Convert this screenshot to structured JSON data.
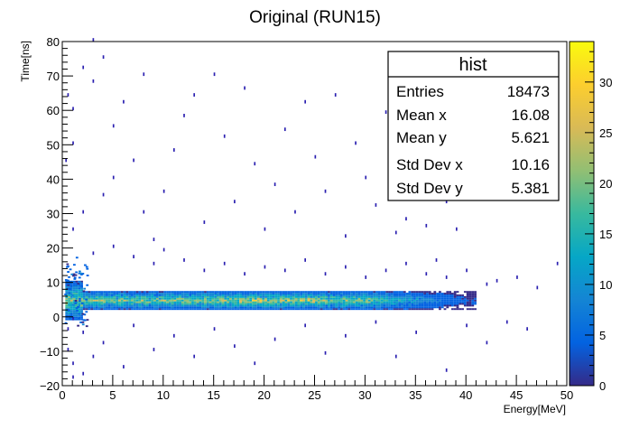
{
  "chart_data": {
    "type": "heatmap",
    "title": "Original (RUN15)",
    "xlabel": "Energy[MeV]",
    "ylabel": "Time[ns]",
    "xlim": [
      0,
      50
    ],
    "ylim": [
      -20,
      80
    ],
    "xticks": [
      "0",
      "5",
      "10",
      "15",
      "20",
      "25",
      "30",
      "35",
      "40",
      "45",
      "50"
    ],
    "yticks": [
      "−20",
      "−10",
      "0",
      "10",
      "20",
      "30",
      "40",
      "50",
      "60",
      "70",
      "80"
    ],
    "zlim": [
      0,
      34
    ],
    "zticks": [
      "0",
      "5",
      "10",
      "15",
      "20",
      "25",
      "30"
    ],
    "grid": false,
    "stats_box": {
      "title": "hist",
      "rows": [
        {
          "label": "Entries",
          "value": "18473"
        },
        {
          "label": "Mean x",
          "value": "16.08"
        },
        {
          "label": "Mean y",
          "value": "5.621"
        },
        {
          "label": "Std Dev x",
          "value": "10.16"
        },
        {
          "label": "Std Dev y",
          "value": "5.381"
        }
      ]
    },
    "band": {
      "x_range": [
        0.3,
        41
      ],
      "y_center": 4.5,
      "y_halfwidth": 2.5,
      "peak_counts": 22
    },
    "scatter_points": [
      [
        1,
        60
      ],
      [
        1,
        50
      ],
      [
        2,
        72
      ],
      [
        3,
        80
      ],
      [
        3,
        68
      ],
      [
        4,
        75
      ],
      [
        5,
        55
      ],
      [
        5,
        40
      ],
      [
        6,
        62
      ],
      [
        7,
        45
      ],
      [
        8,
        30
      ],
      [
        8,
        70
      ],
      [
        9,
        22
      ],
      [
        10,
        36
      ],
      [
        11,
        48
      ],
      [
        12,
        58
      ],
      [
        13,
        64
      ],
      [
        14,
        27
      ],
      [
        15,
        70
      ],
      [
        16,
        52
      ],
      [
        17,
        33
      ],
      [
        18,
        66
      ],
      [
        19,
        44
      ],
      [
        20,
        25
      ],
      [
        21,
        38
      ],
      [
        22,
        54
      ],
      [
        23,
        30
      ],
      [
        24,
        62
      ],
      [
        25,
        46
      ],
      [
        26,
        36
      ],
      [
        27,
        64
      ],
      [
        28,
        23
      ],
      [
        29,
        50
      ],
      [
        30,
        40
      ],
      [
        31,
        32
      ],
      [
        32,
        59
      ],
      [
        33,
        24
      ],
      [
        34,
        28
      ],
      [
        35,
        44
      ],
      [
        36,
        26
      ],
      [
        37,
        16
      ],
      [
        38,
        33
      ],
      [
        39,
        25
      ],
      [
        2,
        -5
      ],
      [
        3,
        -12
      ],
      [
        4,
        -8
      ],
      [
        6,
        -15
      ],
      [
        7,
        -3
      ],
      [
        9,
        -10
      ],
      [
        11,
        -6
      ],
      [
        13,
        -12
      ],
      [
        15,
        -4
      ],
      [
        17,
        -9
      ],
      [
        19,
        -14
      ],
      [
        21,
        -7
      ],
      [
        24,
        -3
      ],
      [
        26,
        -11
      ],
      [
        28,
        -6
      ],
      [
        31,
        -2
      ],
      [
        33,
        -12
      ],
      [
        35,
        -5
      ],
      [
        38,
        -16
      ],
      [
        40,
        -3
      ],
      [
        42,
        -8
      ],
      [
        44,
        -2
      ],
      [
        46,
        -4
      ],
      [
        47,
        8
      ],
      [
        49,
        15
      ],
      [
        1,
        25
      ],
      [
        2,
        30
      ],
      [
        3,
        18
      ],
      [
        4,
        35
      ],
      [
        5,
        20
      ],
      [
        7,
        17
      ],
      [
        9,
        15
      ],
      [
        10,
        19
      ],
      [
        12,
        16
      ],
      [
        14,
        13
      ],
      [
        16,
        15
      ],
      [
        18,
        12
      ],
      [
        20,
        14
      ],
      [
        22,
        13
      ],
      [
        24,
        16
      ],
      [
        26,
        12
      ],
      [
        28,
        14
      ],
      [
        30,
        11
      ],
      [
        32,
        13
      ],
      [
        34,
        15
      ],
      [
        36,
        12
      ],
      [
        38,
        11
      ],
      [
        40,
        13
      ],
      [
        42,
        9
      ],
      [
        43,
        10
      ],
      [
        45,
        11
      ],
      [
        1,
        -18
      ],
      [
        2,
        -17
      ],
      [
        1,
        -14
      ],
      [
        0.5,
        -10
      ],
      [
        0.5,
        -4
      ],
      [
        1,
        -1
      ],
      [
        0.3,
        45
      ],
      [
        0.5,
        64
      ]
    ],
    "colorbar_colors": [
      "#352a87",
      "#0363e1",
      "#1485d4",
      "#06a7c6",
      "#38b99e",
      "#92bf73",
      "#d9ba56",
      "#fcce2e",
      "#f9fb0e"
    ]
  }
}
